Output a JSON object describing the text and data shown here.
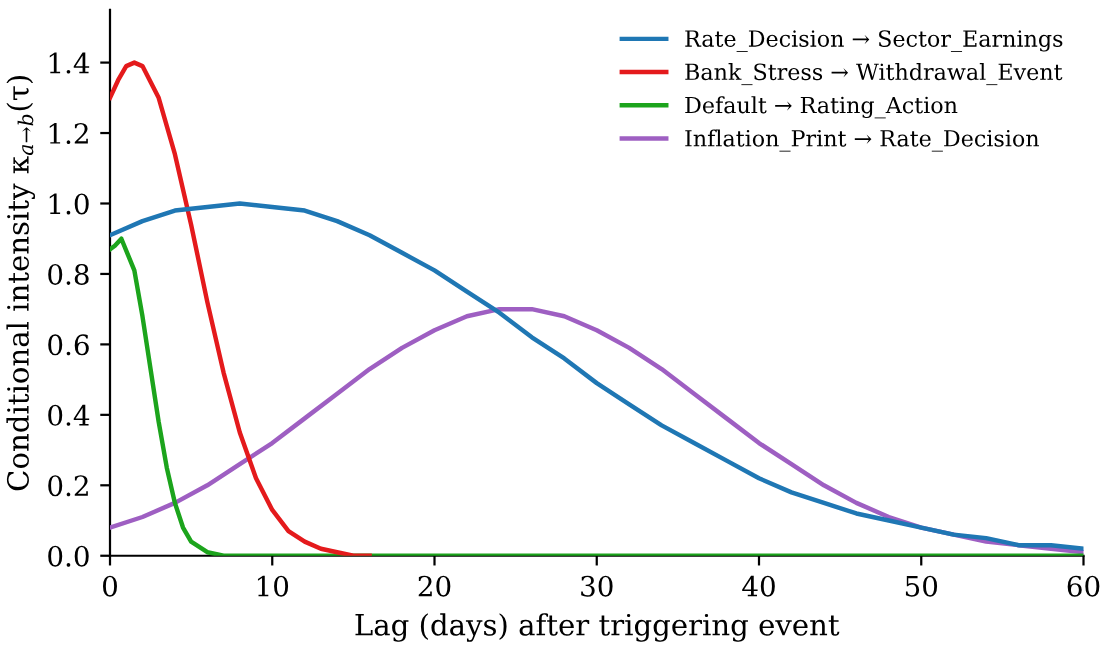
{
  "chart_data": {
    "type": "line",
    "xlabel": "Lag (days) after triggering event",
    "ylabel": "Conditional intensity κ$_{a→b}$(τ)",
    "xlim": [
      0,
      60
    ],
    "xticks": [
      0,
      10,
      20,
      30,
      40,
      50,
      60
    ],
    "ylim": [
      0,
      1.55
    ],
    "yticks": [
      {
        "value": 0,
        "label": "0.0"
      },
      {
        "value": 0.2,
        "label": "0.2"
      },
      {
        "value": 0.4,
        "label": "0.4"
      },
      {
        "value": 0.6,
        "label": "0.6"
      },
      {
        "value": 0.8,
        "label": "0.8"
      },
      {
        "value": 1.0,
        "label": "1.0"
      },
      {
        "value": 1.2,
        "label": "1.2"
      },
      {
        "value": 1.4,
        "label": "1.4"
      }
    ],
    "grid": false,
    "legend": "top right",
    "marker": "none",
    "line_style": "solid",
    "series": [
      {
        "name": "Rate_Decision → Sector_Earnings",
        "color": "#1f77b4",
        "x": [
          0,
          2,
          4,
          6,
          8,
          10,
          12,
          14,
          16,
          18,
          20,
          22,
          24,
          26,
          28,
          30,
          32,
          34,
          36,
          38,
          40,
          42,
          44,
          46,
          48,
          50,
          52,
          54,
          56,
          58,
          60
        ],
        "values": [
          0.91,
          0.95,
          0.98,
          0.99,
          1.0,
          0.99,
          0.98,
          0.95,
          0.91,
          0.86,
          0.81,
          0.75,
          0.69,
          0.62,
          0.56,
          0.49,
          0.43,
          0.37,
          0.32,
          0.27,
          0.22,
          0.18,
          0.15,
          0.12,
          0.1,
          0.08,
          0.06,
          0.05,
          0.03,
          0.03,
          0.02
        ]
      },
      {
        "name": "Bank_Stress → Withdrawal_Event",
        "color": "#e41a1c",
        "x": [
          0,
          0.5,
          1,
          1.5,
          2,
          3,
          4,
          5,
          6,
          7,
          8,
          9,
          10,
          11,
          12,
          13,
          14,
          15,
          16
        ],
        "values": [
          1.3,
          1.35,
          1.39,
          1.4,
          1.39,
          1.3,
          1.14,
          0.94,
          0.72,
          0.52,
          0.35,
          0.22,
          0.13,
          0.07,
          0.04,
          0.02,
          0.01,
          0.0,
          0.0
        ]
      },
      {
        "name": "Default → Rating_Action",
        "color": "#1ca41c",
        "x": [
          0,
          0.3,
          0.7,
          1.5,
          2,
          2.5,
          3,
          3.5,
          4,
          4.5,
          5,
          6,
          7,
          8,
          60
        ],
        "values": [
          0.87,
          0.88,
          0.9,
          0.81,
          0.68,
          0.53,
          0.38,
          0.25,
          0.15,
          0.08,
          0.04,
          0.01,
          0.0,
          0.0,
          0.0
        ]
      },
      {
        "name": "Inflation_Print → Rate_Decision",
        "color": "#9e5fc2",
        "x": [
          0,
          2,
          4,
          6,
          8,
          10,
          12,
          14,
          16,
          18,
          20,
          22,
          24,
          25,
          26,
          28,
          30,
          32,
          34,
          36,
          38,
          40,
          42,
          44,
          46,
          48,
          50,
          52,
          54,
          56,
          58,
          60
        ],
        "values": [
          0.08,
          0.11,
          0.15,
          0.2,
          0.26,
          0.32,
          0.39,
          0.46,
          0.53,
          0.59,
          0.64,
          0.68,
          0.7,
          0.7,
          0.7,
          0.68,
          0.64,
          0.59,
          0.53,
          0.46,
          0.39,
          0.32,
          0.26,
          0.2,
          0.15,
          0.11,
          0.08,
          0.06,
          0.04,
          0.03,
          0.02,
          0.01
        ]
      }
    ]
  }
}
